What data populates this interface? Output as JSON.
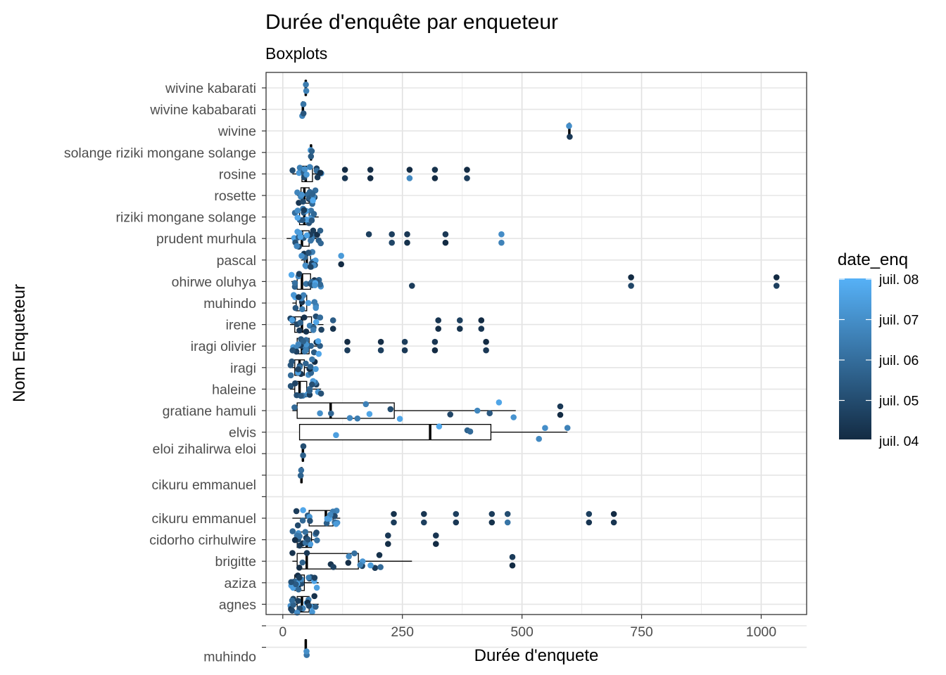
{
  "chart_data": {
    "type": "boxplot",
    "title": "Durée d'enquête par enqueteur",
    "subtitle": "Boxplots",
    "xlabel": "Durée d'enquete",
    "ylabel": "Nom Enqueteur",
    "xlim": [
      -35,
      1095
    ],
    "x_ticks": [
      "0",
      "250",
      "500",
      "750",
      "1000"
    ],
    "x_tick_values": [
      0,
      250,
      500,
      750,
      1000
    ],
    "grid": true,
    "legend": {
      "title": "date_enq",
      "position": "right",
      "labels": [
        "juil. 08",
        "juil. 07",
        "juil. 06",
        "juil. 05",
        "juil. 04"
      ],
      "color_low": "#132B43",
      "color_high": "#56B1F7"
    },
    "categories": [
      "wivine kabarati",
      "wivine kababarati",
      "wivine",
      "solange riziki mongane solange",
      "rosine",
      "rosette",
      "riziki mongane solange",
      "prudent murhula",
      "pascal",
      "ohirwe oluhya",
      "muhindo",
      "irene",
      "iragi olivier",
      "iragi",
      "haleine",
      "gratiane hamuli",
      "elvis",
      "eloi zihalirwa eloi",
      "cikuru emmanuel",
      "",
      "cikuru emmanuel",
      "cidorho cirhulwire",
      "brigitte",
      "aziza",
      "agnes",
      "",
      "muhindo"
    ],
    "boxes": [
      {
        "row": 0,
        "q1": 47,
        "median": 48,
        "q3": 49,
        "lower": 47,
        "upper": 49
      },
      {
        "row": 1,
        "q1": 41,
        "median": 42,
        "q3": 43,
        "lower": 40,
        "upper": 44
      },
      {
        "row": 2,
        "q1": 598,
        "median": 599,
        "q3": 600,
        "lower": 598,
        "upper": 600
      },
      {
        "row": 3,
        "q1": 58,
        "median": 59,
        "q3": 60,
        "lower": 57,
        "upper": 61
      },
      {
        "row": 4,
        "q1": 40,
        "median": 48,
        "q3": 62,
        "lower": 20,
        "upper": 82
      },
      {
        "row": 5,
        "q1": 38,
        "median": 45,
        "q3": 55,
        "lower": 30,
        "upper": 70
      },
      {
        "row": 6,
        "q1": 35,
        "median": 45,
        "q3": 55,
        "lower": 25,
        "upper": 75
      },
      {
        "row": 7,
        "q1": 30,
        "median": 40,
        "q3": 55,
        "lower": 8,
        "upper": 80
      },
      {
        "row": 8,
        "q1": 45,
        "median": 50,
        "q3": 58,
        "lower": 38,
        "upper": 70
      },
      {
        "row": 9,
        "q1": 30,
        "median": 40,
        "q3": 58,
        "lower": 18,
        "upper": 80
      },
      {
        "row": 10,
        "q1": 28,
        "median": 38,
        "q3": 50,
        "lower": 20,
        "upper": 70
      },
      {
        "row": 11,
        "q1": 25,
        "median": 40,
        "q3": 60,
        "lower": 15,
        "upper": 85
      },
      {
        "row": 12,
        "q1": 30,
        "median": 40,
        "q3": 55,
        "lower": 20,
        "upper": 80
      },
      {
        "row": 13,
        "q1": 25,
        "median": 35,
        "q3": 45,
        "lower": 15,
        "upper": 70
      },
      {
        "row": 14,
        "q1": 25,
        "median": 35,
        "q3": 50,
        "lower": 15,
        "upper": 80
      },
      {
        "row": 15,
        "q1": 30,
        "median": 100,
        "q3": 233,
        "lower": 20,
        "upper": 487
      },
      {
        "row": 16,
        "q1": 35,
        "median": 308,
        "q3": 435,
        "lower": 35,
        "upper": 595
      },
      {
        "row": 17,
        "q1": 41,
        "median": 42,
        "q3": 43,
        "lower": 40,
        "upper": 44
      },
      {
        "row": 18,
        "q1": 38,
        "median": 39,
        "q3": 40,
        "lower": 37,
        "upper": 41
      },
      {
        "row": 20,
        "q1": 55,
        "median": 90,
        "q3": 105,
        "lower": 20,
        "upper": 120
      },
      {
        "row": 21,
        "q1": 30,
        "median": 50,
        "q3": 60,
        "lower": 20,
        "upper": 75
      },
      {
        "row": 22,
        "q1": 30,
        "median": 50,
        "q3": 158,
        "lower": 20,
        "upper": 270
      },
      {
        "row": 23,
        "q1": 25,
        "median": 35,
        "q3": 45,
        "lower": 15,
        "upper": 75
      },
      {
        "row": 24,
        "q1": 30,
        "median": 40,
        "q3": 55,
        "lower": 15,
        "upper": 75
      },
      {
        "row": 26,
        "q1": 47,
        "median": 48,
        "q3": 49,
        "lower": 46,
        "upper": 50
      }
    ],
    "outliers": [
      {
        "row": 4,
        "x": 183,
        "date": 4.1
      },
      {
        "row": 4,
        "x": 183,
        "date": 4.0
      },
      {
        "row": 4,
        "x": 318,
        "date": 4.2
      },
      {
        "row": 4,
        "x": 318,
        "date": 4.0
      },
      {
        "row": 4,
        "x": 130,
        "date": 4.0
      },
      {
        "row": 4,
        "x": 130,
        "date": 4.3
      },
      {
        "row": 4,
        "x": 265,
        "date": 4.0
      },
      {
        "row": 4,
        "x": 265,
        "date": 6.8
      },
      {
        "row": 4,
        "x": 385,
        "date": 4.0
      },
      {
        "row": 4,
        "x": 385,
        "date": 4.5
      },
      {
        "row": 7,
        "x": 180,
        "date": 4.6
      },
      {
        "row": 7,
        "x": 228,
        "date": 4.8
      },
      {
        "row": 7,
        "x": 228,
        "date": 4.6
      },
      {
        "row": 7,
        "x": 260,
        "date": 4.2
      },
      {
        "row": 7,
        "x": 260,
        "date": 4.4
      },
      {
        "row": 7,
        "x": 340,
        "date": 4.0
      },
      {
        "row": 7,
        "x": 340,
        "date": 4.4
      },
      {
        "row": 7,
        "x": 457,
        "date": 6.6
      },
      {
        "row": 7,
        "x": 457,
        "date": 6.9
      },
      {
        "row": 8,
        "x": 122,
        "date": 4.0
      },
      {
        "row": 8,
        "x": 122,
        "date": 7.3
      },
      {
        "row": 9,
        "x": 270,
        "date": 4.5
      },
      {
        "row": 9,
        "x": 728,
        "date": 4.0
      },
      {
        "row": 9,
        "x": 728,
        "date": 4.8
      },
      {
        "row": 9,
        "x": 1032,
        "date": 4.0
      },
      {
        "row": 9,
        "x": 1032,
        "date": 4.6
      },
      {
        "row": 11,
        "x": 325,
        "date": 4.3
      },
      {
        "row": 11,
        "x": 325,
        "date": 4.1
      },
      {
        "row": 11,
        "x": 370,
        "date": 4.6
      },
      {
        "row": 11,
        "x": 370,
        "date": 4.2
      },
      {
        "row": 11,
        "x": 415,
        "date": 4.0
      },
      {
        "row": 11,
        "x": 415,
        "date": 4.3
      },
      {
        "row": 11,
        "x": 105,
        "date": 5.5
      },
      {
        "row": 11,
        "x": 105,
        "date": 4.2
      },
      {
        "row": 12,
        "x": 135,
        "date": 4.0
      },
      {
        "row": 12,
        "x": 135,
        "date": 4.5
      },
      {
        "row": 12,
        "x": 205,
        "date": 4.1
      },
      {
        "row": 12,
        "x": 205,
        "date": 4.6
      },
      {
        "row": 12,
        "x": 255,
        "date": 4.5
      },
      {
        "row": 12,
        "x": 255,
        "date": 4.4
      },
      {
        "row": 12,
        "x": 318,
        "date": 4.3
      },
      {
        "row": 12,
        "x": 318,
        "date": 4.0
      },
      {
        "row": 12,
        "x": 425,
        "date": 4.0
      },
      {
        "row": 12,
        "x": 425,
        "date": 4.4
      },
      {
        "row": 15,
        "x": 580,
        "date": 4.4
      },
      {
        "row": 15,
        "x": 580,
        "date": 4.0
      },
      {
        "row": 16,
        "x": 595,
        "date": 6.6
      },
      {
        "row": 20,
        "x": 232,
        "date": 4.5
      },
      {
        "row": 20,
        "x": 232,
        "date": 4.2
      },
      {
        "row": 20,
        "x": 295,
        "date": 4.6
      },
      {
        "row": 20,
        "x": 295,
        "date": 4.3
      },
      {
        "row": 20,
        "x": 362,
        "date": 4.4
      },
      {
        "row": 20,
        "x": 362,
        "date": 4.6
      },
      {
        "row": 20,
        "x": 437,
        "date": 4.2
      },
      {
        "row": 20,
        "x": 437,
        "date": 4.5
      },
      {
        "row": 20,
        "x": 640,
        "date": 4.3
      },
      {
        "row": 20,
        "x": 640,
        "date": 4.6
      },
      {
        "row": 20,
        "x": 692,
        "date": 4.3
      },
      {
        "row": 20,
        "x": 692,
        "date": 4.0
      },
      {
        "row": 20,
        "x": 470,
        "date": 6.2
      },
      {
        "row": 20,
        "x": 470,
        "date": 5.0
      },
      {
        "row": 21,
        "x": 220,
        "date": 4.1
      },
      {
        "row": 21,
        "x": 220,
        "date": 4.4
      },
      {
        "row": 21,
        "x": 320,
        "date": 4.0
      },
      {
        "row": 21,
        "x": 320,
        "date": 4.3
      },
      {
        "row": 22,
        "x": 480,
        "date": 4.0
      },
      {
        "row": 22,
        "x": 480,
        "date": 4.5
      }
    ]
  }
}
